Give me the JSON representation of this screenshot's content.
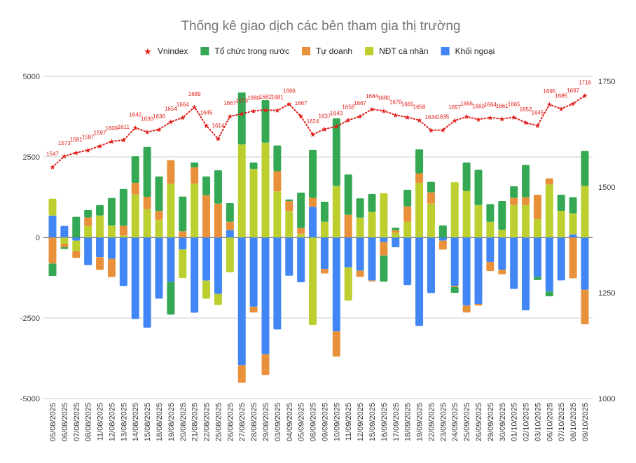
{
  "chart_data": {
    "type": "bar",
    "stacked": true,
    "title": "Thống kê giao dịch các bên tham gia thị trường",
    "legend_position": "top",
    "grid": true,
    "categories": [
      "05/08/2025",
      "06/08/2025",
      "07/08/2025",
      "08/08/2025",
      "11/08/2025",
      "12/08/2025",
      "13/08/2025",
      "14/08/2025",
      "15/08/2025",
      "18/08/2025",
      "19/08/2025",
      "20/08/2025",
      "21/08/2025",
      "22/08/2025",
      "25/08/2025",
      "26/08/2025",
      "27/08/2025",
      "28/08/2025",
      "29/08/2025",
      "03/09/2025",
      "04/09/2025",
      "05/09/2025",
      "08/09/2025",
      "09/09/2025",
      "10/09/2025",
      "11/09/2025",
      "12/09/2025",
      "15/09/2025",
      "16/09/2025",
      "17/09/2025",
      "18/09/2025",
      "19/09/2025",
      "22/09/2025",
      "23/09/2025",
      "24/09/2025",
      "25/09/2025",
      "26/09/2025",
      "29/09/2025",
      "30/09/2025",
      "01/10/2025",
      "02/10/2025",
      "03/10/2025",
      "06/10/2025",
      "07/10/2025",
      "08/10/2025",
      "09/10/2025"
    ],
    "left_axis": {
      "range": [
        -5000,
        5000
      ],
      "ticks": [
        "5000",
        "2500",
        "0",
        "-2500",
        "-5000"
      ]
    },
    "right_axis": {
      "range": [
        1000,
        1750
      ],
      "ticks": [
        "1750",
        "1500",
        "1250",
        "1000"
      ]
    },
    "series": [
      {
        "name": "Tổ chức trong nước",
        "color": "#34a853",
        "values": [
          -385,
          -50,
          640,
          230,
          325,
          850,
          1140,
          825,
          1550,
          1070,
          -1015,
          1080,
          150,
          580,
          1035,
          580,
          1615,
          200,
          1320,
          800,
          50,
          1100,
          1495,
          625,
          2095,
          1255,
          600,
          560,
          -810,
          80,
          515,
          745,
          325,
          375,
          -180,
          885,
          1095,
          550,
          890,
          360,
          1000,
          -95,
          -145,
          500,
          505,
          1085
        ]
      },
      {
        "name": "Tự doanh",
        "color": "#e8913a",
        "values": [
          -810,
          -110,
          -210,
          260,
          -390,
          -560,
          305,
          360,
          385,
          275,
          740,
          190,
          500,
          1310,
          1050,
          255,
          -545,
          -180,
          -645,
          625,
          310,
          175,
          270,
          -140,
          -780,
          700,
          -190,
          -30,
          -415,
          80,
          485,
          295,
          350,
          -275,
          -40,
          -215,
          -50,
          -285,
          -140,
          225,
          245,
          760,
          190,
          0,
          -1270,
          -1070
        ]
      },
      {
        "name": "NĐT cá nhân",
        "color": "#bccf2e",
        "values": [
          520,
          -195,
          -325,
          360,
          680,
          375,
          60,
          1335,
          875,
          545,
          1660,
          -885,
          1675,
          -560,
          -340,
          -1080,
          2885,
          2125,
          2940,
          1430,
          820,
          115,
          -2720,
          485,
          1600,
          -1030,
          615,
          790,
          1375,
          145,
          480,
          1695,
          1050,
          0,
          1715,
          1440,
          1005,
          485,
          240,
          1005,
          1005,
          565,
          1645,
          825,
          650,
          1600
        ]
      },
      {
        "name": "Khối ngoại",
        "color": "#4285f4",
        "values": [
          680,
          360,
          -100,
          -855,
          -615,
          -665,
          -1505,
          -2530,
          -2800,
          -1900,
          -1375,
          -375,
          -2335,
          -1340,
          -1755,
          230,
          -3965,
          -2150,
          -3625,
          -2855,
          -1190,
          -1390,
          955,
          -980,
          -2915,
          -930,
          -1030,
          -1335,
          -145,
          -305,
          -1480,
          -2745,
          -1725,
          -100,
          -1500,
          -2115,
          -2065,
          -760,
          -1000,
          -1595,
          -2260,
          -1225,
          -1680,
          -1335,
          95,
          -1625
        ]
      },
      {
        "name": "Vnindex",
        "type": "line",
        "axis": "right",
        "color": "#e0201b",
        "marker": "star",
        "values": [
          1547,
          1573,
          1581,
          1587,
          1597,
          1608,
          1611,
          1640,
          1630,
          1636,
          1654,
          1664,
          1689,
          1645,
          1614,
          1667,
          1673,
          1680,
          1682,
          1681,
          1696,
          1667,
          1624,
          1637,
          1643,
          1658,
          1667,
          1684,
          1680,
          1670,
          1665,
          1658,
          1634,
          1635,
          1657,
          1666,
          1660,
          1664,
          1661,
          1665,
          1652,
          1645,
          1695,
          1685,
          1697,
          1716
        ]
      }
    ]
  }
}
